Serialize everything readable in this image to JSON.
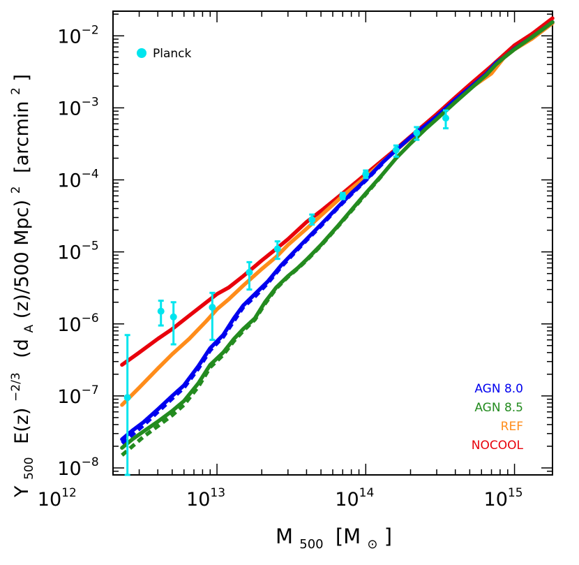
{
  "chart_data": {
    "type": "line",
    "xscale": "log",
    "yscale": "log",
    "xlim": [
      2000000000000.0,
      1800000000000000.0
    ],
    "ylim": [
      8e-09,
      0.022
    ],
    "xticks": [
      {
        "value": 1000000000000.0,
        "base": "10",
        "exp": "12"
      },
      {
        "value": 10000000000000.0,
        "base": "10",
        "exp": "13"
      },
      {
        "value": 100000000000000.0,
        "base": "10",
        "exp": "14"
      },
      {
        "value": 1000000000000000.0,
        "base": "10",
        "exp": "15"
      }
    ],
    "yticks": [
      {
        "value": 1e-08,
        "base": "10",
        "exp": "−8"
      },
      {
        "value": 1e-07,
        "base": "10",
        "exp": "−7"
      },
      {
        "value": 1e-06,
        "base": "10",
        "exp": "−6"
      },
      {
        "value": 1e-05,
        "base": "10",
        "exp": "−5"
      },
      {
        "value": 0.0001,
        "base": "10",
        "exp": "−4"
      },
      {
        "value": 0.001,
        "base": "10",
        "exp": "−3"
      },
      {
        "value": 0.01,
        "base": "10",
        "exp": "−2"
      }
    ],
    "xlabel": {
      "main": "M",
      "sub": "500",
      "bracket_open": "[M",
      "sun": "⊙",
      "bracket_close": "]"
    },
    "ylabel": {
      "p1": "Y",
      "p1_sub": "500",
      "p2": "E(z)",
      "p2_sup": "−2/3",
      "p3": "(d",
      "p3_sub": "A",
      "p4": "(z)/500 Mpc)",
      "p4_sup": "2",
      "p5": "[arcmin",
      "p5_sup": "2",
      "p6": "]"
    },
    "series": [
      {
        "name": "NOCOOL",
        "color": "#e8000b",
        "style": "solid",
        "points": [
          [
            2300000000000.0,
            2.7e-07
          ],
          [
            3000000000000.0,
            4e-07
          ],
          [
            4000000000000.0,
            6.2e-07
          ],
          [
            5000000000000.0,
            8.5e-07
          ],
          [
            6500000000000.0,
            1.3e-06
          ],
          [
            8500000000000.0,
            2e-06
          ],
          [
            10000000000000.0,
            2.6e-06
          ],
          [
            12000000000000.0,
            3.2e-06
          ],
          [
            15000000000000.0,
            4.6e-06
          ],
          [
            20000000000000.0,
            7.6e-06
          ],
          [
            25000000000000.0,
            1.1e-05
          ],
          [
            30000000000000.0,
            1.5e-05
          ],
          [
            40000000000000.0,
            2.6e-05
          ],
          [
            50000000000000.0,
            3.7e-05
          ],
          [
            70000000000000.0,
            6.5e-05
          ],
          [
            100000000000000.0,
            0.00012
          ],
          [
            150000000000000.0,
            0.00024
          ],
          [
            200000000000000.0,
            0.0004
          ],
          [
            300000000000000.0,
            0.00082
          ],
          [
            400000000000000.0,
            0.0014
          ],
          [
            500000000000000.0,
            0.0021
          ],
          [
            700000000000000.0,
            0.0038
          ],
          [
            1000000000000000.0,
            0.0074
          ],
          [
            1300000000000000.0,
            0.0105
          ],
          [
            1800000000000000.0,
            0.0175
          ]
        ]
      },
      {
        "name": "REF",
        "color": "#ff8c1a",
        "style": "solid",
        "points": [
          [
            2300000000000.0,
            7.5e-08
          ],
          [
            3000000000000.0,
            1.3e-07
          ],
          [
            4000000000000.0,
            2.4e-07
          ],
          [
            5000000000000.0,
            3.8e-07
          ],
          [
            6500000000000.0,
            6.2e-07
          ],
          [
            8500000000000.0,
            1.1e-06
          ],
          [
            10000000000000.0,
            1.6e-06
          ],
          [
            12000000000000.0,
            2.2e-06
          ],
          [
            15000000000000.0,
            3.4e-06
          ],
          [
            20000000000000.0,
            5.8e-06
          ],
          [
            25000000000000.0,
            8.5e-06
          ],
          [
            30000000000000.0,
            1.25e-05
          ],
          [
            40000000000000.0,
            2.1e-05
          ],
          [
            50000000000000.0,
            3.2e-05
          ],
          [
            70000000000000.0,
            6e-05
          ],
          [
            100000000000000.0,
            0.00011
          ],
          [
            150000000000000.0,
            0.00023
          ],
          [
            200000000000000.0,
            0.00038
          ],
          [
            300000000000000.0,
            0.00076
          ],
          [
            400000000000000.0,
            0.00125
          ],
          [
            500000000000000.0,
            0.00185
          ],
          [
            700000000000000.0,
            0.003
          ],
          [
            850000000000000.0,
            0.005
          ],
          [
            1000000000000000.0,
            0.0065
          ],
          [
            1300000000000000.0,
            0.009
          ],
          [
            1800000000000000.0,
            0.015
          ]
        ]
      },
      {
        "name": "AGN 8.0",
        "color": "#0000ee",
        "style": "solid",
        "points": [
          [
            2300000000000.0,
            2.5e-08
          ],
          [
            2700000000000.0,
            3.3e-08
          ],
          [
            3200000000000.0,
            4.3e-08
          ],
          [
            4000000000000.0,
            6.5e-08
          ],
          [
            5000000000000.0,
            1e-07
          ],
          [
            6000000000000.0,
            1.4e-07
          ],
          [
            7500000000000.0,
            2.6e-07
          ],
          [
            9000000000000.0,
            4.6e-07
          ],
          [
            11000000000000.0,
            7e-07
          ],
          [
            13000000000000.0,
            1.2e-06
          ],
          [
            15000000000000.0,
            1.8e-06
          ],
          [
            18000000000000.0,
            2.6e-06
          ],
          [
            22000000000000.0,
            3.9e-06
          ],
          [
            27000000000000.0,
            6.5e-06
          ],
          [
            33000000000000.0,
            1e-05
          ],
          [
            40000000000000.0,
            1.5e-05
          ],
          [
            50000000000000.0,
            2.4e-05
          ],
          [
            65000000000000.0,
            4.2e-05
          ],
          [
            80000000000000.0,
            6.5e-05
          ],
          [
            100000000000000.0,
            0.0001
          ],
          [
            130000000000000.0,
            0.000175
          ],
          [
            160000000000000.0,
            0.00026
          ],
          [
            200000000000000.0,
            0.00039
          ],
          [
            250000000000000.0,
            0.00056
          ],
          [
            300000000000000.0,
            0.00076
          ],
          [
            400000000000000.0,
            0.0013
          ],
          [
            500000000000000.0,
            0.0019
          ],
          [
            650000000000000.0,
            0.003
          ],
          [
            750000000000000.0,
            0.0042
          ],
          [
            850000000000000.0,
            0.005
          ],
          [
            1000000000000000.0,
            0.0066
          ],
          [
            1300000000000000.0,
            0.0095
          ],
          [
            1800000000000000.0,
            0.0155
          ]
        ]
      },
      {
        "name": "AGN 8.0 (dashed)",
        "color": "#0000ee",
        "style": "dashed",
        "points": [
          [
            2300000000000.0,
            2.2e-08
          ],
          [
            2700000000000.0,
            2.9e-08
          ],
          [
            3200000000000.0,
            3.9e-08
          ],
          [
            4000000000000.0,
            6e-08
          ],
          [
            5000000000000.0,
            9.2e-08
          ],
          [
            6000000000000.0,
            1.3e-07
          ],
          [
            7500000000000.0,
            2.4e-07
          ],
          [
            9000000000000.0,
            4.3e-07
          ],
          [
            11000000000000.0,
            6.6e-07
          ],
          [
            13000000000000.0,
            1.1e-06
          ],
          [
            15000000000000.0,
            1.7e-06
          ],
          [
            18000000000000.0,
            2.4e-06
          ],
          [
            22000000000000.0,
            3.7e-06
          ],
          [
            27000000000000.0,
            6.2e-06
          ],
          [
            33000000000000.0,
            9.6e-06
          ],
          [
            40000000000000.0,
            1.45e-05
          ],
          [
            50000000000000.0,
            2.3e-05
          ],
          [
            65000000000000.0,
            4.1e-05
          ],
          [
            80000000000000.0,
            6.3e-05
          ],
          [
            100000000000000.0,
            9.8e-05
          ],
          [
            130000000000000.0,
            0.00017
          ]
        ]
      },
      {
        "name": "AGN 8.5",
        "color": "#238b1f",
        "style": "solid",
        "points": [
          [
            2300000000000.0,
            1.9e-08
          ],
          [
            2700000000000.0,
            2.5e-08
          ],
          [
            3200000000000.0,
            3.2e-08
          ],
          [
            4000000000000.0,
            4.4e-08
          ],
          [
            5000000000000.0,
            6.2e-08
          ],
          [
            6000000000000.0,
            8.5e-08
          ],
          [
            7500000000000.0,
            1.5e-07
          ],
          [
            9000000000000.0,
            2.7e-07
          ],
          [
            11000000000000.0,
            4e-07
          ],
          [
            13000000000000.0,
            6.2e-07
          ],
          [
            15000000000000.0,
            8.5e-07
          ],
          [
            18000000000000.0,
            1.2e-06
          ],
          [
            21000000000000.0,
            2e-06
          ],
          [
            25000000000000.0,
            3.2e-06
          ],
          [
            30000000000000.0,
            4.6e-06
          ],
          [
            35000000000000.0,
            6e-06
          ],
          [
            40000000000000.0,
            7.8e-06
          ],
          [
            50000000000000.0,
            1.25e-05
          ],
          [
            65000000000000.0,
            2.3e-05
          ],
          [
            80000000000000.0,
            3.8e-05
          ],
          [
            100000000000000.0,
            6.5e-05
          ],
          [
            130000000000000.0,
            0.00012
          ],
          [
            160000000000000.0,
            0.0002
          ],
          [
            200000000000000.0,
            0.00032
          ],
          [
            250000000000000.0,
            0.0005
          ],
          [
            300000000000000.0,
            0.0007
          ],
          [
            400000000000000.0,
            0.0012
          ],
          [
            500000000000000.0,
            0.0018
          ],
          [
            650000000000000.0,
            0.0029
          ],
          [
            750000000000000.0,
            0.004
          ],
          [
            850000000000000.0,
            0.005
          ],
          [
            1000000000000000.0,
            0.0065
          ],
          [
            1300000000000000.0,
            0.0095
          ],
          [
            1800000000000000.0,
            0.0155
          ]
        ]
      },
      {
        "name": "AGN 8.5 (dashed)",
        "color": "#238b1f",
        "style": "dashed",
        "points": [
          [
            2300000000000.0,
            1.5e-08
          ],
          [
            2700000000000.0,
            2e-08
          ],
          [
            3200000000000.0,
            2.7e-08
          ],
          [
            4000000000000.0,
            3.8e-08
          ],
          [
            5000000000000.0,
            5.4e-08
          ],
          [
            6000000000000.0,
            7.5e-08
          ],
          [
            7500000000000.0,
            1.35e-07
          ],
          [
            9000000000000.0,
            2.5e-07
          ],
          [
            11000000000000.0,
            3.7e-07
          ],
          [
            13000000000000.0,
            5.8e-07
          ],
          [
            15000000000000.0,
            8e-07
          ],
          [
            18000000000000.0,
            1.15e-06
          ],
          [
            21000000000000.0,
            1.9e-06
          ],
          [
            25000000000000.0,
            3.1e-06
          ],
          [
            30000000000000.0,
            4.5e-06
          ],
          [
            35000000000000.0,
            5.9e-06
          ],
          [
            40000000000000.0,
            7.6e-06
          ],
          [
            50000000000000.0,
            1.22e-05
          ],
          [
            65000000000000.0,
            2.25e-05
          ],
          [
            80000000000000.0,
            3.7e-05
          ],
          [
            100000000000000.0,
            6.3e-05
          ],
          [
            130000000000000.0,
            0.000118
          ]
        ]
      }
    ],
    "planck": {
      "name": "Planck",
      "color": "#00e5ee",
      "points": [
        {
          "x": 2500000000000.0,
          "y": 9.5e-08,
          "lo": 8e-09,
          "hi": 7e-07
        },
        {
          "x": 4200000000000.0,
          "y": 1.5e-06,
          "lo": 9.5e-07,
          "hi": 2.1e-06
        },
        {
          "x": 5100000000000.0,
          "y": 1.25e-06,
          "lo": 5.2e-07,
          "hi": 2e-06
        },
        {
          "x": 9300000000000.0,
          "y": 1.7e-06,
          "lo": 6e-07,
          "hi": 2.7e-06
        },
        {
          "x": 16500000000000.0,
          "y": 5.2e-06,
          "lo": 3e-06,
          "hi": 7.2e-06
        },
        {
          "x": 25500000000000.0,
          "y": 1.1e-05,
          "lo": 8e-06,
          "hi": 1.4e-05
        },
        {
          "x": 43500000000000.0,
          "y": 2.8e-05,
          "lo": 2.4e-05,
          "hi": 3.3e-05
        },
        {
          "x": 70000000000000.0,
          "y": 6e-05,
          "lo": 5.4e-05,
          "hi": 6.6e-05
        },
        {
          "x": 100000000000000.0,
          "y": 0.00012,
          "lo": 0.000106,
          "hi": 0.000135
        },
        {
          "x": 160000000000000.0,
          "y": 0.00026,
          "lo": 0.00021,
          "hi": 0.0003
        },
        {
          "x": 220000000000000.0,
          "y": 0.00045,
          "lo": 0.00036,
          "hi": 0.00054
        },
        {
          "x": 345000000000000.0,
          "y": 0.00072,
          "lo": 0.00052,
          "hi": 0.00092
        }
      ]
    },
    "legend": {
      "placement": "bottom-right",
      "entries": [
        {
          "label": "AGN 8.0",
          "color": "#0000ee"
        },
        {
          "label": "AGN 8.5",
          "color": "#238b1f"
        },
        {
          "label": "REF",
          "color": "#ff8c1a"
        },
        {
          "label": "NOCOOL",
          "color": "#e8000b"
        }
      ]
    },
    "planck_legend": {
      "label": "Planck",
      "placement": "top-left"
    }
  }
}
